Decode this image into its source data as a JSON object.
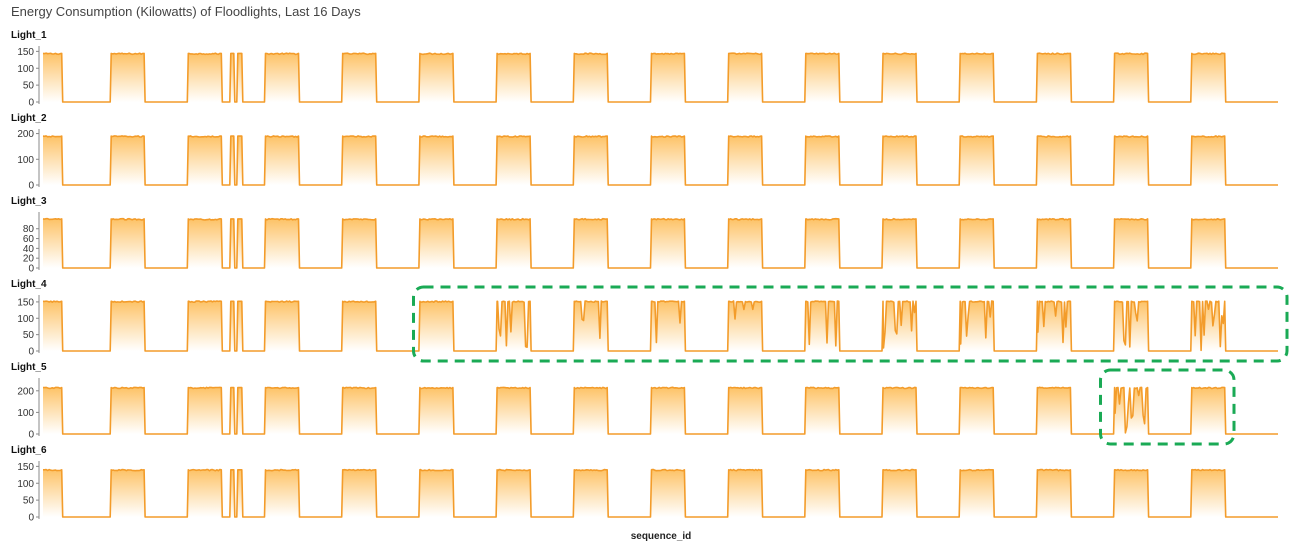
{
  "chart_data": {
    "type": "area",
    "title": "Energy Consumption (Kilowatts) of Floodlights, Last 16 Days",
    "xlabel": "sequence_id",
    "colors": {
      "line": "#f39c2a",
      "fill_top": "#fdbf5e",
      "fill_bottom": "#ffffff",
      "highlight": "#1aaa55"
    },
    "grid": false,
    "legend": "none",
    "days": 16,
    "x_range": [
      0,
      16
    ],
    "on_fraction": 0.44,
    "series": [
      {
        "name": "Light_1",
        "ylim": [
          0,
          160
        ],
        "ticks": [
          0,
          50,
          100,
          150
        ],
        "on_level": 144,
        "anomalies": []
      },
      {
        "name": "Light_2",
        "ylim": [
          0,
          210
        ],
        "ticks": [
          0,
          100,
          200
        ],
        "on_level": 190,
        "anomalies": []
      },
      {
        "name": "Light_3",
        "ylim": [
          0,
          110
        ],
        "ticks": [
          0,
          20,
          40,
          60,
          80
        ],
        "on_level": 100,
        "anomalies": []
      },
      {
        "name": "Light_4",
        "ylim": [
          0,
          165
        ],
        "ticks": [
          0,
          50,
          100,
          150
        ],
        "on_level": 152,
        "anomalies": [
          {
            "day": 6,
            "level": "heavy"
          },
          {
            "day": 7,
            "level": "medium"
          },
          {
            "day": 8,
            "level": "light"
          },
          {
            "day": 9,
            "level": "medium"
          },
          {
            "day": 10,
            "level": "medium"
          },
          {
            "day": 11,
            "level": "heavy"
          },
          {
            "day": 12,
            "level": "heavy"
          },
          {
            "day": 13,
            "level": "medium"
          },
          {
            "day": 14,
            "level": "heavy"
          },
          {
            "day": 15,
            "level": "heavy"
          }
        ]
      },
      {
        "name": "Light_5",
        "ylim": [
          0,
          250
        ],
        "ticks": [
          0,
          100,
          200
        ],
        "on_level": 215,
        "anomalies": [
          {
            "day": 14,
            "level": "heavy"
          }
        ]
      },
      {
        "name": "Light_6",
        "ylim": [
          0,
          160
        ],
        "ticks": [
          0,
          50,
          100,
          150
        ],
        "on_level": 140,
        "anomalies": []
      }
    ],
    "highlights": [
      {
        "series": "Light_4",
        "from_day": 5,
        "to_day": 16
      },
      {
        "series": "Light_5",
        "from_day": 13.9,
        "to_day": 15.3
      }
    ]
  }
}
